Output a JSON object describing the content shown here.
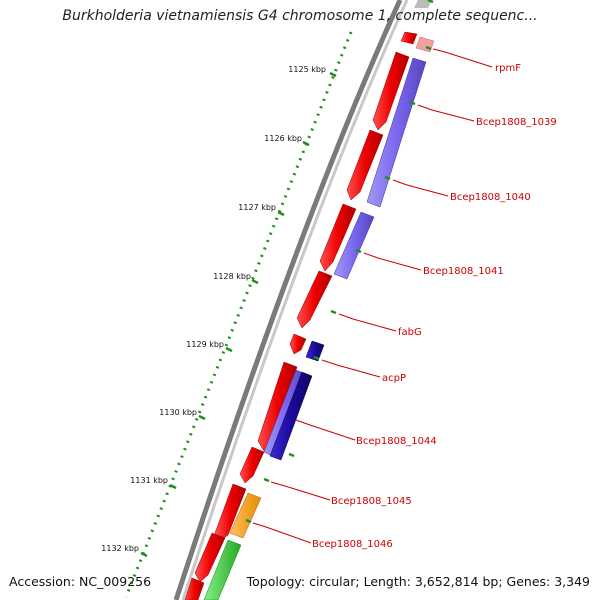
{
  "map": {
    "title": "Burkholderia vietnamiensis G4 chromosome 1, complete sequenc...",
    "accession": "Accession: NC_009256",
    "summary": "Topology: circular; Length: 3,652,814 bp; Genes: 3,349",
    "ruler_ticks": [
      "1125 kbp",
      "1126 kbp",
      "1127 kbp",
      "1128 kbp",
      "1129 kbp",
      "1130 kbp",
      "1131 kbp",
      "1132 kbp"
    ],
    "gene_labels": [
      "rpmF",
      "Bcep1808_1039",
      "Bcep1808_1040",
      "Bcep1808_1041",
      "fabG",
      "acpP",
      "Bcep1808_1044",
      "Bcep1808_1045",
      "Bcep1808_1046"
    ],
    "colors": {
      "backbone": "#808080",
      "forward_gene": "#ee0000",
      "reverse_light": "#7b68ee",
      "reverse_dark": "#1a0a9c",
      "orange_feature": "#ff9900",
      "green_feature": "#33cc33",
      "ruler": "#1f8f1f",
      "label": "#cc0000"
    }
  }
}
